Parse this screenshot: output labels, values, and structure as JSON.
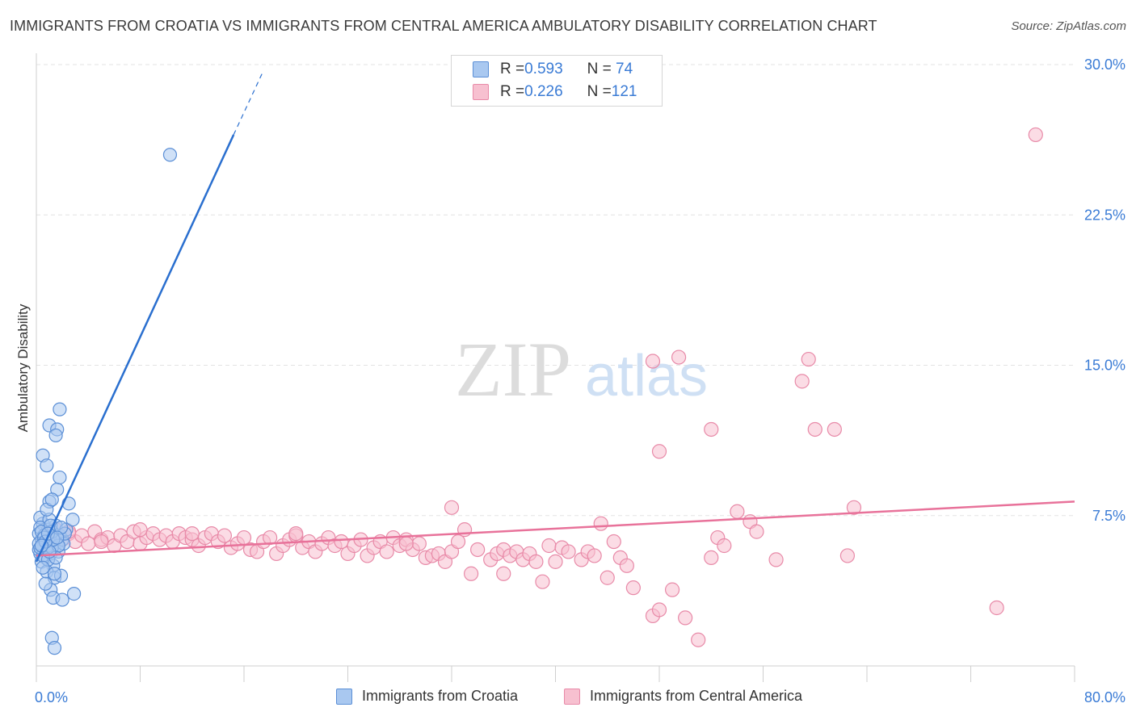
{
  "title": "IMMIGRANTS FROM CROATIA VS IMMIGRANTS FROM CENTRAL AMERICA AMBULATORY DISABILITY CORRELATION CHART",
  "source": "Source: ZipAtlas.com",
  "watermark": {
    "zip": "ZIP",
    "atlas": "atlas"
  },
  "legend": {
    "rows": [
      {
        "r_label": "R = ",
        "r_value": "0.593",
        "n_label": "N = ",
        "n_value": " 74"
      },
      {
        "r_label": "R = ",
        "r_value": "0.226",
        "n_label": "N = ",
        "n_value": "121"
      }
    ]
  },
  "chart_data": {
    "type": "scatter",
    "title": "IMMIGRANTS FROM CROATIA VS IMMIGRANTS FROM CENTRAL AMERICA AMBULATORY DISABILITY CORRELATION CHART",
    "xlabel": "",
    "ylabel": "Ambulatory Disability",
    "xlim": [
      0,
      80
    ],
    "ylim": [
      0,
      30
    ],
    "x_tick_labels": [
      "0.0%",
      "80.0%"
    ],
    "y_ticks": [
      7.5,
      15,
      22.5,
      30
    ],
    "y_tick_labels": [
      "7.5%",
      "15.0%",
      "22.5%",
      "30.0%"
    ],
    "grid": true,
    "legend_position": "top-center",
    "colors": {
      "croatia_fill": "#a9c8f0",
      "croatia_stroke": "#5b8fd6",
      "croatia_line": "#2a6fcf",
      "central_fill": "#f7c0d0",
      "central_stroke": "#e88aa8",
      "central_line": "#e8729a",
      "tick_label": "#3a7bd5"
    },
    "series": [
      {
        "name": "Immigrants from Croatia",
        "r": 0.593,
        "n": 74,
        "trend": {
          "x0": 0.0,
          "y0": 5.2,
          "x1": 15.2,
          "y1": 26.5,
          "dash_to_x": 17.5,
          "dash_to_y": 29.7
        },
        "points": [
          [
            0.3,
            5.6
          ],
          [
            0.5,
            5.9
          ],
          [
            0.4,
            6.3
          ],
          [
            0.6,
            6.0
          ],
          [
            0.8,
            5.8
          ],
          [
            0.2,
            6.6
          ],
          [
            1.0,
            6.1
          ],
          [
            0.7,
            5.4
          ],
          [
            0.5,
            7.1
          ],
          [
            1.2,
            6.4
          ],
          [
            1.4,
            5.9
          ],
          [
            0.9,
            6.8
          ],
          [
            0.3,
            7.4
          ],
          [
            1.6,
            6.2
          ],
          [
            1.1,
            5.6
          ],
          [
            0.4,
            5.2
          ],
          [
            1.3,
            5.0
          ],
          [
            0.8,
            4.7
          ],
          [
            1.8,
            6.5
          ],
          [
            2.0,
            6.3
          ],
          [
            1.5,
            7.0
          ],
          [
            0.6,
            6.2
          ],
          [
            0.2,
            5.8
          ],
          [
            1.0,
            7.3
          ],
          [
            1.7,
            5.7
          ],
          [
            0.9,
            6.0
          ],
          [
            1.2,
            6.7
          ],
          [
            2.3,
            6.8
          ],
          [
            2.1,
            6.1
          ],
          [
            0.5,
            5.5
          ],
          [
            1.4,
            4.4
          ],
          [
            1.9,
            4.5
          ],
          [
            1.1,
            3.8
          ],
          [
            0.7,
            4.1
          ],
          [
            1.3,
            3.4
          ],
          [
            2.0,
            3.3
          ],
          [
            2.9,
            3.6
          ],
          [
            1.2,
            1.4
          ],
          [
            1.4,
            0.9
          ],
          [
            0.5,
            10.5
          ],
          [
            0.8,
            10.0
          ],
          [
            1.0,
            12.0
          ],
          [
            1.6,
            11.8
          ],
          [
            1.8,
            12.8
          ],
          [
            1.5,
            11.5
          ],
          [
            1.0,
            8.2
          ],
          [
            1.6,
            8.8
          ],
          [
            1.8,
            9.4
          ],
          [
            2.5,
            8.1
          ],
          [
            2.8,
            7.3
          ],
          [
            10.3,
            25.5
          ],
          [
            0.3,
            6.9
          ],
          [
            0.6,
            6.5
          ],
          [
            0.9,
            5.3
          ],
          [
            1.2,
            5.9
          ],
          [
            0.4,
            6.7
          ],
          [
            1.7,
            6.0
          ],
          [
            0.2,
            6.1
          ],
          [
            0.5,
            4.9
          ],
          [
            1.1,
            7.0
          ],
          [
            1.3,
            6.3
          ],
          [
            0.8,
            7.8
          ],
          [
            2.2,
            6.6
          ],
          [
            1.5,
            5.4
          ],
          [
            0.6,
            6.4
          ],
          [
            0.3,
            5.9
          ],
          [
            1.0,
            5.7
          ],
          [
            1.9,
            6.9
          ],
          [
            0.7,
            6.2
          ],
          [
            1.4,
            4.6
          ],
          [
            1.2,
            8.3
          ],
          [
            0.4,
            6.0
          ],
          [
            0.9,
            6.6
          ],
          [
            1.6,
            6.4
          ]
        ]
      },
      {
        "name": "Immigrants from Central America",
        "r": 0.226,
        "n": 121,
        "trend": {
          "x0": 0.0,
          "y0": 5.5,
          "x1": 80.0,
          "y1": 8.2
        },
        "points": [
          [
            1.0,
            6.5
          ],
          [
            1.5,
            6.8
          ],
          [
            2.0,
            6.3
          ],
          [
            2.5,
            6.6
          ],
          [
            3.0,
            6.2
          ],
          [
            3.5,
            6.5
          ],
          [
            4.0,
            6.1
          ],
          [
            4.5,
            6.7
          ],
          [
            5.0,
            6.3
          ],
          [
            5.5,
            6.4
          ],
          [
            6.0,
            6.0
          ],
          [
            6.5,
            6.5
          ],
          [
            7.0,
            6.2
          ],
          [
            7.5,
            6.7
          ],
          [
            8.0,
            6.1
          ],
          [
            8.5,
            6.4
          ],
          [
            9.0,
            6.6
          ],
          [
            9.5,
            6.3
          ],
          [
            10.0,
            6.5
          ],
          [
            10.5,
            6.2
          ],
          [
            11.0,
            6.6
          ],
          [
            11.5,
            6.4
          ],
          [
            12.0,
            6.3
          ],
          [
            12.5,
            6.0
          ],
          [
            13.0,
            6.4
          ],
          [
            13.5,
            6.6
          ],
          [
            14.0,
            6.2
          ],
          [
            14.5,
            6.5
          ],
          [
            15.0,
            5.9
          ],
          [
            15.5,
            6.1
          ],
          [
            16.0,
            6.4
          ],
          [
            16.5,
            5.8
          ],
          [
            17.0,
            5.7
          ],
          [
            17.5,
            6.2
          ],
          [
            18.0,
            6.4
          ],
          [
            18.5,
            5.6
          ],
          [
            19.0,
            6.0
          ],
          [
            19.5,
            6.3
          ],
          [
            20.0,
            6.5
          ],
          [
            20.5,
            5.9
          ],
          [
            21.0,
            6.2
          ],
          [
            21.5,
            5.7
          ],
          [
            22.0,
            6.1
          ],
          [
            22.5,
            6.4
          ],
          [
            23.0,
            6.0
          ],
          [
            23.5,
            6.2
          ],
          [
            24.0,
            5.6
          ],
          [
            24.5,
            6.0
          ],
          [
            25.0,
            6.3
          ],
          [
            25.5,
            5.5
          ],
          [
            26.0,
            5.9
          ],
          [
            26.5,
            6.2
          ],
          [
            27.0,
            5.7
          ],
          [
            27.5,
            6.4
          ],
          [
            28.0,
            6.0
          ],
          [
            28.5,
            6.3
          ],
          [
            29.0,
            5.8
          ],
          [
            29.5,
            6.1
          ],
          [
            30.0,
            5.4
          ],
          [
            30.5,
            5.5
          ],
          [
            31.0,
            5.6
          ],
          [
            31.5,
            5.2
          ],
          [
            32.0,
            5.7
          ],
          [
            32.5,
            6.2
          ],
          [
            33.0,
            6.8
          ],
          [
            34.0,
            5.8
          ],
          [
            35.0,
            5.3
          ],
          [
            35.5,
            5.6
          ],
          [
            36.0,
            5.8
          ],
          [
            36.5,
            5.5
          ],
          [
            37.0,
            5.7
          ],
          [
            37.5,
            5.3
          ],
          [
            38.0,
            5.6
          ],
          [
            38.5,
            5.2
          ],
          [
            39.0,
            4.2
          ],
          [
            39.5,
            6.0
          ],
          [
            40.0,
            5.2
          ],
          [
            40.5,
            5.9
          ],
          [
            41.0,
            5.7
          ],
          [
            42.0,
            5.3
          ],
          [
            42.5,
            5.7
          ],
          [
            43.0,
            5.5
          ],
          [
            43.5,
            7.1
          ],
          [
            44.0,
            4.4
          ],
          [
            45.0,
            5.4
          ],
          [
            45.5,
            5.0
          ],
          [
            46.0,
            3.9
          ],
          [
            47.5,
            2.5
          ],
          [
            48.0,
            2.8
          ],
          [
            49.0,
            3.8
          ],
          [
            50.0,
            2.4
          ],
          [
            51.0,
            1.3
          ],
          [
            52.0,
            5.4
          ],
          [
            52.5,
            6.4
          ],
          [
            53.0,
            6.0
          ],
          [
            54.0,
            7.7
          ],
          [
            55.0,
            7.2
          ],
          [
            55.5,
            6.7
          ],
          [
            57.0,
            5.3
          ],
          [
            59.0,
            14.2
          ],
          [
            59.5,
            15.3
          ],
          [
            62.5,
            5.5
          ],
          [
            63.0,
            7.9
          ],
          [
            61.5,
            11.8
          ],
          [
            74.0,
            2.9
          ],
          [
            77.0,
            26.5
          ],
          [
            60.0,
            11.8
          ],
          [
            52.0,
            11.8
          ],
          [
            49.5,
            15.4
          ],
          [
            48.0,
            10.7
          ],
          [
            32.0,
            7.9
          ],
          [
            36.0,
            4.6
          ],
          [
            33.5,
            4.6
          ],
          [
            47.5,
            15.2
          ],
          [
            2.5,
            6.7
          ],
          [
            8.0,
            6.8
          ],
          [
            28.5,
            6.1
          ],
          [
            44.5,
            6.2
          ],
          [
            20.0,
            6.6
          ],
          [
            12.0,
            6.6
          ],
          [
            5.0,
            6.2
          ]
        ]
      }
    ]
  },
  "bottom_legend": [
    {
      "label": "Immigrants from Croatia"
    },
    {
      "label": "Immigrants from Central America"
    }
  ]
}
